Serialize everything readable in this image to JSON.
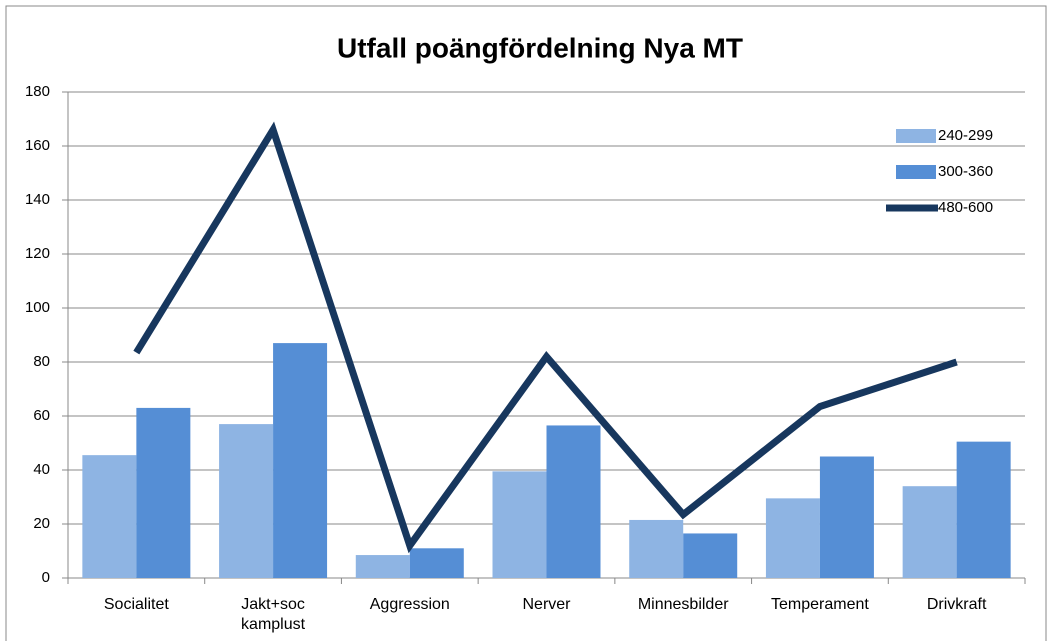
{
  "chart_data": {
    "type": "bar+line",
    "title": "Utfall poängfördelning Nya MT",
    "categories": [
      "Socialitet",
      "Jakt+soc kamplust",
      "Aggression",
      "Nerver",
      "Minnesbilder",
      "Temperament",
      "Drivkraft"
    ],
    "series": [
      {
        "name": "240-299",
        "type": "bar",
        "color": "#8eb4e3",
        "values": [
          45.5,
          57,
          8.5,
          39.5,
          21.5,
          29.5,
          34
        ]
      },
      {
        "name": "300-360",
        "type": "bar",
        "color": "#558ed5",
        "values": [
          63,
          87,
          11,
          56.5,
          16.5,
          45,
          50.5
        ]
      },
      {
        "name": "480-600",
        "type": "line",
        "color": "#17375e",
        "values": [
          83.5,
          166,
          12,
          82,
          23.5,
          63.5,
          80
        ]
      }
    ],
    "ylim": [
      0,
      180
    ],
    "yticks": [
      0,
      20,
      40,
      60,
      80,
      100,
      120,
      140,
      160,
      180
    ],
    "grid": true,
    "legend": "right"
  }
}
